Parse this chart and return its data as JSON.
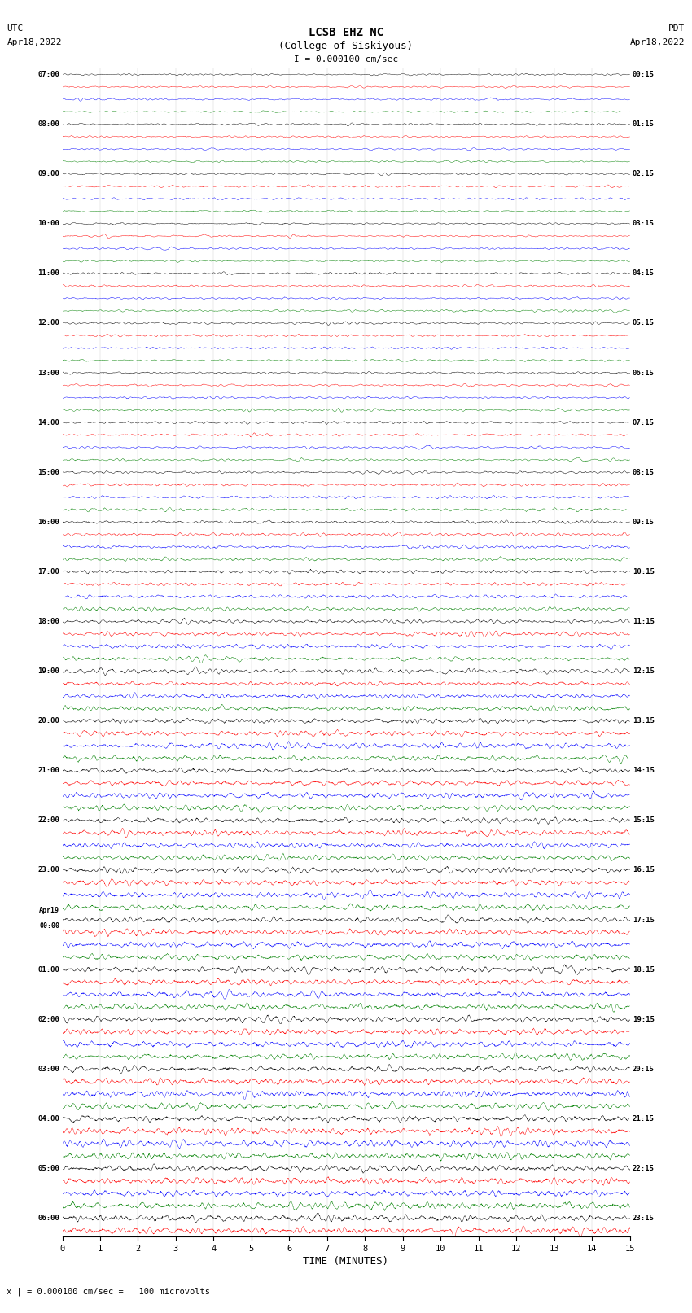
{
  "title_line1": "LCSB EHZ NC",
  "title_line2": "(College of Siskiyous)",
  "scale_label": "I = 0.000100 cm/sec",
  "left_label_top": "UTC",
  "left_label_date": "Apr18,2022",
  "right_label_top": "PDT",
  "right_label_date": "Apr18,2022",
  "bottom_label": "TIME (MINUTES)",
  "scale_note": "x | = 0.000100 cm/sec =   100 microvolts",
  "colors_cycle": [
    "black",
    "red",
    "blue",
    "green"
  ],
  "left_times": [
    "07:00",
    "",
    "",
    "",
    "08:00",
    "",
    "",
    "",
    "09:00",
    "",
    "",
    "",
    "10:00",
    "",
    "",
    "",
    "11:00",
    "",
    "",
    "",
    "12:00",
    "",
    "",
    "",
    "13:00",
    "",
    "",
    "",
    "14:00",
    "",
    "",
    "",
    "15:00",
    "",
    "",
    "",
    "16:00",
    "",
    "",
    "",
    "17:00",
    "",
    "",
    "",
    "18:00",
    "",
    "",
    "",
    "19:00",
    "",
    "",
    "",
    "20:00",
    "",
    "",
    "",
    "21:00",
    "",
    "",
    "",
    "22:00",
    "",
    "",
    "",
    "23:00",
    "",
    "",
    "",
    "Apr19\n00:00",
    "",
    "",
    "",
    "01:00",
    "",
    "",
    "",
    "02:00",
    "",
    "",
    "",
    "03:00",
    "",
    "",
    "",
    "04:00",
    "",
    "",
    "",
    "05:00",
    "",
    "",
    "",
    "06:00",
    ""
  ],
  "right_times": [
    "00:15",
    "",
    "",
    "",
    "01:15",
    "",
    "",
    "",
    "02:15",
    "",
    "",
    "",
    "03:15",
    "",
    "",
    "",
    "04:15",
    "",
    "",
    "",
    "05:15",
    "",
    "",
    "",
    "06:15",
    "",
    "",
    "",
    "07:15",
    "",
    "",
    "",
    "08:15",
    "",
    "",
    "",
    "09:15",
    "",
    "",
    "",
    "10:15",
    "",
    "",
    "",
    "11:15",
    "",
    "",
    "",
    "12:15",
    "",
    "",
    "",
    "13:15",
    "",
    "",
    "",
    "14:15",
    "",
    "",
    "",
    "15:15",
    "",
    "",
    "",
    "16:15",
    "",
    "",
    "",
    "17:15",
    "",
    "",
    "",
    "18:15",
    "",
    "",
    "",
    "19:15",
    "",
    "",
    "",
    "20:15",
    "",
    "",
    "",
    "21:15",
    "",
    "",
    "",
    "22:15",
    "",
    "",
    "",
    "23:15",
    ""
  ],
  "total_rows": 94,
  "minutes_per_row": 15,
  "bg_color": "white",
  "fig_width": 8.5,
  "fig_height": 16.13,
  "dpi": 100
}
